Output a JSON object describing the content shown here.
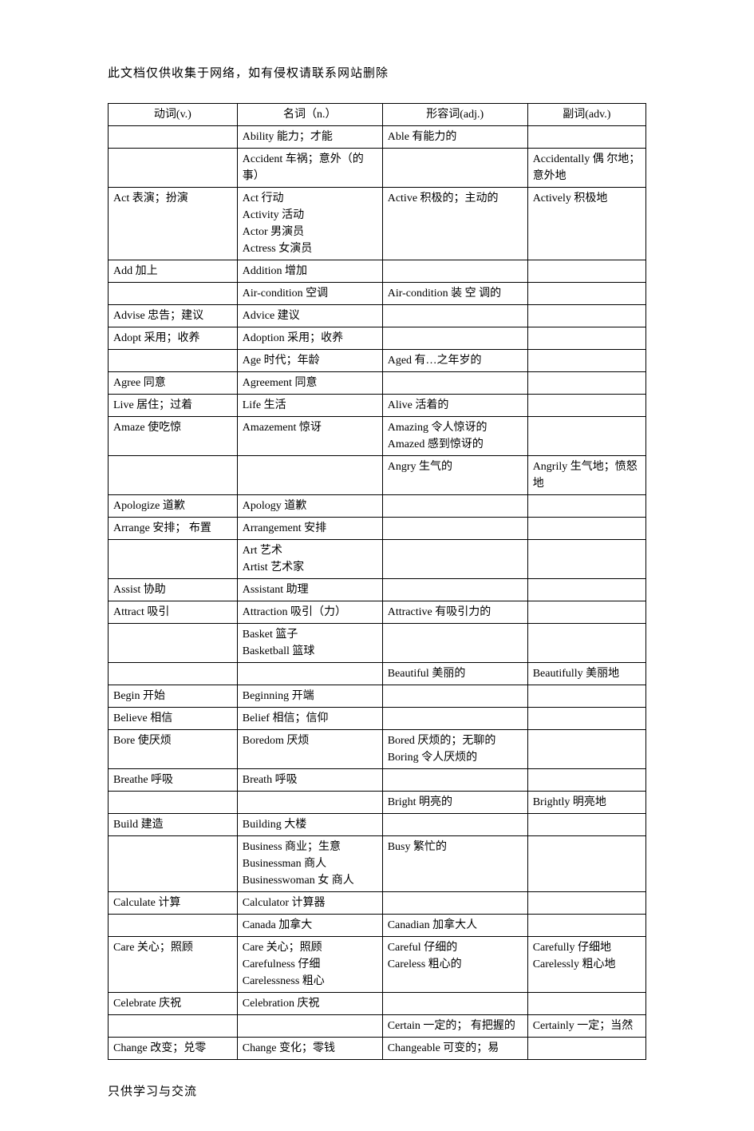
{
  "header_note": "此文档仅供收集于网络，如有侵权请联系网站删除",
  "footer_note": "只供学习与交流",
  "columns": [
    "动词(v.)",
    "名词（n.）",
    "形容词(adj.)",
    "副词(adv.)"
  ],
  "rows": [
    [
      "",
      "Ability  能力；才能",
      "Able  有能力的",
      ""
    ],
    [
      "",
      "Accident  车祸；意外（的事）",
      "",
      "Accidentally   偶 尔地；意外地"
    ],
    [
      "Act 表演；扮演",
      "Act 行动\nActivity  活动\nActor  男演员\nActress   女演员",
      "Active  积极的；主动的",
      "Actively  积极地"
    ],
    [
      "Add  加上",
      "Addition  增加",
      "",
      ""
    ],
    [
      "",
      "Air-condition   空调",
      "Air-condition    装 空 调的",
      ""
    ],
    [
      "Advise   忠告；建议",
      "Advice   建议",
      "",
      ""
    ],
    [
      "Adopt   采用；收养",
      "Adoption  采用；收养",
      "",
      ""
    ],
    [
      "",
      "Age  时代；年龄",
      "Aged   有…之年岁的",
      ""
    ],
    [
      "Agree   同意",
      "Agreement   同意",
      "",
      ""
    ],
    [
      "Live  居住；过着",
      "Life  生活",
      "Alive  活着的",
      ""
    ],
    [
      "Amaze  使吃惊",
      "Amazement  惊讶",
      "Amazing  令人惊讶的\nAmazed  感到惊讶的",
      ""
    ],
    [
      "",
      "",
      "Angry  生气的",
      "Angrily  生气地；愤怒地"
    ],
    [
      "Apologize   道歉",
      "Apology   道歉",
      "",
      ""
    ],
    [
      "Arrange    安排； 布置",
      "Arrangement   安排",
      "",
      ""
    ],
    [
      "",
      "Art  艺术\nArtist  艺术家",
      "",
      ""
    ],
    [
      "Assist  协助",
      "Assistant   助理",
      "",
      ""
    ],
    [
      "Attract   吸引",
      "Attraction   吸引（力）",
      "Attractive   有吸引力的",
      ""
    ],
    [
      "",
      "Basket  篮子\nBasketball   篮球",
      "",
      ""
    ],
    [
      "",
      "",
      "Beautiful  美丽的",
      "Beautifully  美丽地"
    ],
    [
      "Begin  开始",
      "Beginning  开端",
      "",
      ""
    ],
    [
      "Believe   相信",
      "Belief  相信；信仰",
      "",
      ""
    ],
    [
      "Bore  使厌烦",
      "Boredom  厌烦",
      "Bored  厌烦的；无聊的\nBoring  令人厌烦的",
      ""
    ],
    [
      "Breathe   呼吸",
      "Breath  呼吸",
      "",
      ""
    ],
    [
      "",
      "",
      "Bright   明亮的",
      "Brightly   明亮地"
    ],
    [
      "Build   建造",
      "Building   大楼",
      "",
      ""
    ],
    [
      "",
      "Business  商业；生意\nBusinessman   商人\nBusinesswoman   女 商人",
      "Busy   繁忙的",
      ""
    ],
    [
      "Calculate   计算",
      "Calculator   计算器",
      "",
      ""
    ],
    [
      "",
      "Canada  加拿大",
      "Canadian   加拿大人",
      ""
    ],
    [
      "Care  关心；照顾",
      "Care  关心；照顾\nCarefulness  仔细\nCarelessness  粗心",
      "Careful  仔细的\nCareless   粗心的",
      "Carefully   仔细地\nCarelessly  粗心地"
    ],
    [
      "Celebrate   庆祝",
      "Celebration   庆祝",
      "",
      ""
    ],
    [
      "",
      "",
      "Certain   一定的； 有把握的",
      "Certainly  一定；当然"
    ],
    [
      "Change 改变；兑零",
      "Change  变化；零钱",
      "Changeable  可变的；易",
      ""
    ]
  ]
}
